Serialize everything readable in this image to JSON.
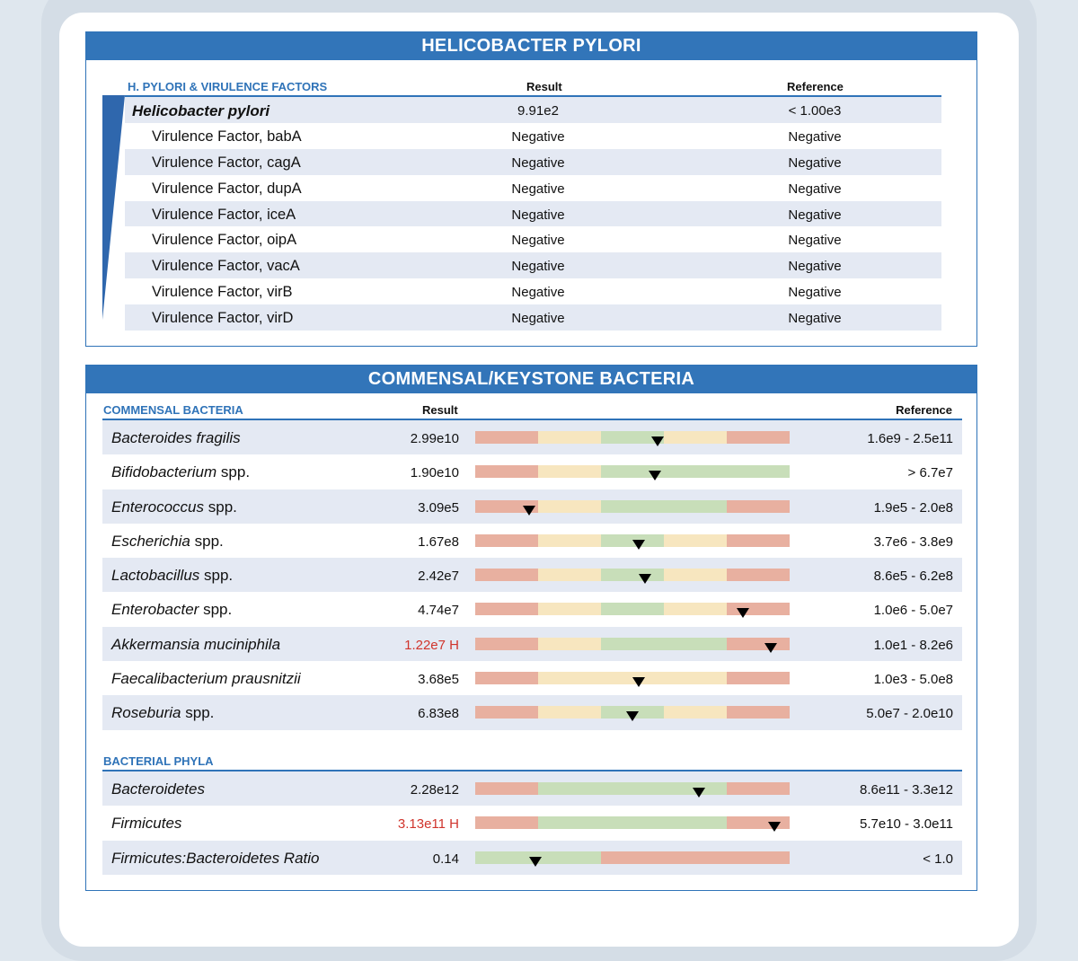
{
  "colors": {
    "accent": "#2f73b8",
    "banner": "#3275b9",
    "row_alt": "#e4e9f3",
    "high": "#d0342c",
    "bar_red": "#e8b0a0",
    "bar_yellow": "#f7e6bf",
    "bar_green": "#c8deb9"
  },
  "hpylori": {
    "title": "HELICOBACTER PYLORI",
    "section_label": "H. PYLORI & VIRULENCE FACTORS",
    "result_header": "Result",
    "reference_header": "Reference",
    "rows": [
      {
        "name": "Helicobacter pylori",
        "result": "9.91e2",
        "reference": "< 1.00e3"
      },
      {
        "name": "Virulence Factor, babA",
        "result": "Negative",
        "reference": "Negative"
      },
      {
        "name": "Virulence Factor, cagA",
        "result": "Negative",
        "reference": "Negative"
      },
      {
        "name": "Virulence Factor, dupA",
        "result": "Negative",
        "reference": "Negative"
      },
      {
        "name": "Virulence Factor, iceA",
        "result": "Negative",
        "reference": "Negative"
      },
      {
        "name": "Virulence Factor, oipA",
        "result": "Negative",
        "reference": "Negative"
      },
      {
        "name": "Virulence Factor, vacA",
        "result": "Negative",
        "reference": "Negative"
      },
      {
        "name": "Virulence Factor, virB",
        "result": "Negative",
        "reference": "Negative"
      },
      {
        "name": "Virulence Factor, virD",
        "result": "Negative",
        "reference": "Negative"
      }
    ]
  },
  "commensal": {
    "title": "COMMENSAL/KEYSTONE BACTERIA",
    "section_label": "COMMENSAL BACTERIA",
    "result_header": "Result",
    "reference_header": "Reference",
    "rows": [
      {
        "genus": "Bacteroides fragilis",
        "suffix": "",
        "result": "2.99e10",
        "high": false,
        "reference": "1.6e9 - 2.5e11",
        "marker": 0.58,
        "zones": [
          "r",
          "y",
          "g",
          "y",
          "r"
        ]
      },
      {
        "genus": "Bifidobacterium",
        "suffix": "spp.",
        "result": "1.90e10",
        "high": false,
        "reference": "> 6.7e7",
        "marker": 0.57,
        "zones": [
          "r",
          "y",
          "g",
          "g",
          "g"
        ]
      },
      {
        "genus": "Enterococcus",
        "suffix": "spp.",
        "result": "3.09e5",
        "high": false,
        "reference": "1.9e5 - 2.0e8",
        "marker": 0.17,
        "zones": [
          "r",
          "y",
          "g",
          "g",
          "r"
        ]
      },
      {
        "genus": "Escherichia",
        "suffix": "spp.",
        "result": "1.67e8",
        "high": false,
        "reference": "3.7e6 - 3.8e9",
        "marker": 0.52,
        "zones": [
          "r",
          "y",
          "g",
          "y",
          "r"
        ]
      },
      {
        "genus": "Lactobacillus",
        "suffix": "spp.",
        "result": "2.42e7",
        "high": false,
        "reference": "8.6e5 - 6.2e8",
        "marker": 0.54,
        "zones": [
          "r",
          "y",
          "g",
          "y",
          "r"
        ]
      },
      {
        "genus": "Enterobacter",
        "suffix": "spp.",
        "result": "4.74e7",
        "high": false,
        "reference": "1.0e6 - 5.0e7",
        "marker": 0.85,
        "zones": [
          "r",
          "y",
          "g",
          "y",
          "r"
        ]
      },
      {
        "genus": "Akkermansia muciniphila",
        "suffix": "",
        "result": "1.22e7 H",
        "high": true,
        "reference": "1.0e1 - 8.2e6",
        "marker": 0.94,
        "zones": [
          "r",
          "y",
          "g",
          "g",
          "r"
        ]
      },
      {
        "genus": "Faecalibacterium prausnitzii",
        "suffix": "",
        "result": "3.68e5",
        "high": false,
        "reference": "1.0e3 - 5.0e8",
        "marker": 0.52,
        "zones": [
          "r",
          "y",
          "y",
          "y",
          "r"
        ]
      },
      {
        "genus": "Roseburia",
        "suffix": "spp.",
        "result": "6.83e8",
        "high": false,
        "reference": "5.0e7 - 2.0e10",
        "marker": 0.5,
        "zones": [
          "r",
          "y",
          "g",
          "y",
          "r"
        ]
      }
    ],
    "phyla_label": "BACTERIAL PHYLA",
    "phyla_rows": [
      {
        "genus": "Bacteroidetes",
        "suffix": "",
        "result": "2.28e12",
        "high": false,
        "reference": "8.6e11 - 3.3e12",
        "marker": 0.71,
        "zones": [
          "r",
          "g",
          "g",
          "g",
          "r"
        ]
      },
      {
        "genus": "Firmicutes",
        "suffix": "",
        "result": "3.13e11 H",
        "high": true,
        "reference": "5.7e10 - 3.0e11",
        "marker": 0.95,
        "zones": [
          "r",
          "g",
          "g",
          "g",
          "r"
        ]
      },
      {
        "genus": "Firmicutes:Bacteroidetes Ratio",
        "suffix": "",
        "result": "0.14",
        "high": false,
        "reference": "< 1.0",
        "marker": 0.19,
        "zones": [
          "g",
          "g",
          "r",
          "r",
          "r"
        ]
      }
    ]
  }
}
